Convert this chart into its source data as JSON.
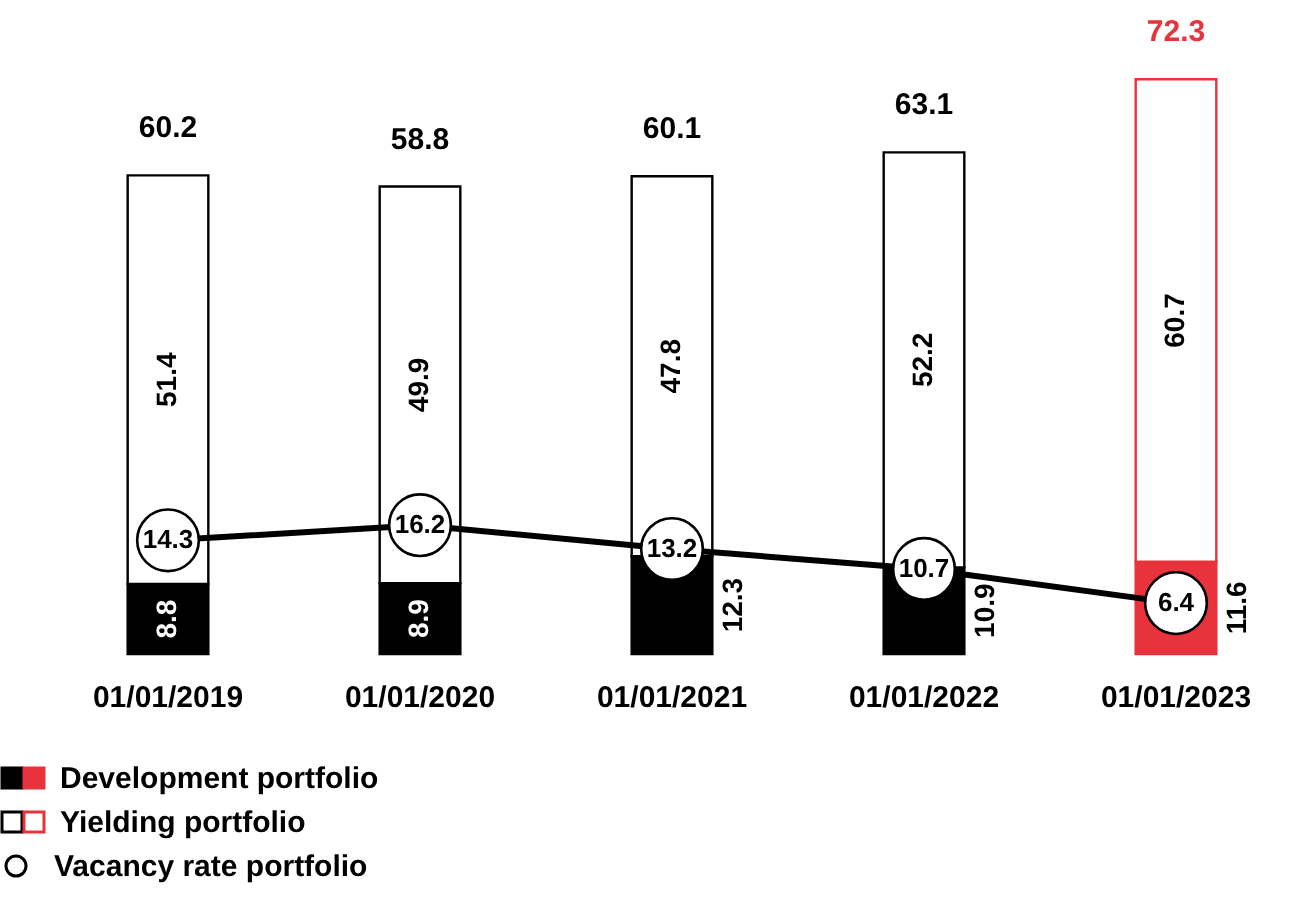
{
  "chart_data": {
    "type": "bar",
    "stacked": true,
    "categories": [
      "01/01/2019",
      "01/01/2020",
      "01/01/2021",
      "01/01/2022",
      "01/01/2023"
    ],
    "series": [
      {
        "name": "Development portfolio",
        "colors": [
          "#000000",
          "#000000",
          "#000000",
          "#000000",
          "#e8323c"
        ],
        "values": [
          8.8,
          8.9,
          12.3,
          10.9,
          11.6
        ]
      },
      {
        "name": "Yielding portfolio",
        "colors": [
          "#ffffff",
          "#ffffff",
          "#ffffff",
          "#ffffff",
          "#ffffff"
        ],
        "values": [
          51.4,
          49.9,
          47.8,
          52.2,
          60.7
        ]
      },
      {
        "name": "Vacancy rate portfolio",
        "type": "line",
        "color": "#000000",
        "values": [
          14.3,
          16.2,
          13.2,
          10.7,
          6.4
        ]
      }
    ],
    "totals": [
      "60.2",
      "58.8",
      "60.1",
      "63.1",
      "72.3"
    ],
    "data_labels": true,
    "marker": "circle",
    "tick_labels": "x",
    "legend": "bottom left",
    "grid": false
  }
}
